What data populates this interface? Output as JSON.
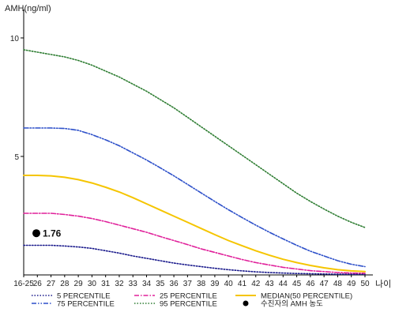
{
  "chart_data": {
    "type": "line",
    "ylabel": "AMH(ng/ml)",
    "xlabel": "나이",
    "ylim": [
      0,
      11
    ],
    "yticks": [
      "10",
      "5"
    ],
    "categories": [
      "16-25",
      "26",
      "27",
      "28",
      "29",
      "30",
      "31",
      "32",
      "33",
      "34",
      "35",
      "36",
      "37",
      "38",
      "39",
      "40",
      "41",
      "42",
      "43",
      "44",
      "45",
      "46",
      "47",
      "48",
      "49",
      "50"
    ],
    "series": [
      {
        "name": "5 PERCENTILE",
        "color": "#1a1a8c",
        "dash": "dotted",
        "values": [
          1.25,
          1.25,
          1.25,
          1.22,
          1.18,
          1.12,
          1.02,
          0.92,
          0.8,
          0.7,
          0.6,
          0.5,
          0.42,
          0.35,
          0.28,
          0.22,
          0.17,
          0.13,
          0.1,
          0.08,
          0.06,
          0.05,
          0.04,
          0.03,
          0.03,
          0.03
        ]
      },
      {
        "name": "25 PERCENTILE",
        "color": "#e0209a",
        "dash": "dashdot",
        "values": [
          2.6,
          2.6,
          2.6,
          2.55,
          2.48,
          2.38,
          2.25,
          2.1,
          1.95,
          1.8,
          1.62,
          1.45,
          1.28,
          1.1,
          0.95,
          0.8,
          0.65,
          0.52,
          0.42,
          0.32,
          0.25,
          0.18,
          0.14,
          0.1,
          0.08,
          0.07
        ]
      },
      {
        "name": "MEDIAN(50 PERCENTILE)",
        "color": "#f5c500",
        "dash": "solid",
        "values": [
          4.2,
          4.2,
          4.18,
          4.12,
          4.02,
          3.88,
          3.7,
          3.5,
          3.26,
          3.0,
          2.74,
          2.48,
          2.22,
          1.96,
          1.7,
          1.45,
          1.23,
          1.02,
          0.83,
          0.66,
          0.52,
          0.4,
          0.3,
          0.22,
          0.17,
          0.14
        ]
      },
      {
        "name": "75 PERCENTILE",
        "color": "#2c4fc9",
        "dash": "dashdotdot",
        "values": [
          6.2,
          6.2,
          6.2,
          6.18,
          6.1,
          5.92,
          5.7,
          5.45,
          5.15,
          4.85,
          4.52,
          4.18,
          3.82,
          3.46,
          3.1,
          2.75,
          2.42,
          2.1,
          1.8,
          1.52,
          1.25,
          1.0,
          0.8,
          0.6,
          0.45,
          0.35
        ]
      },
      {
        "name": "95 PERCENTILE",
        "color": "#2e7d32",
        "dash": "dotted",
        "values": [
          9.5,
          9.4,
          9.3,
          9.2,
          9.05,
          8.85,
          8.6,
          8.35,
          8.05,
          7.75,
          7.4,
          7.05,
          6.65,
          6.25,
          5.85,
          5.45,
          5.05,
          4.65,
          4.25,
          3.85,
          3.45,
          3.1,
          2.78,
          2.48,
          2.22,
          2.0
        ]
      }
    ],
    "legend_order": [
      "5 PERCENTILE",
      "25 PERCENTILE",
      "MEDIAN(50 PERCENTILE)",
      "75 PERCENTILE",
      "95 PERCENTILE",
      "수진자의 AMH 농도"
    ],
    "legend_position": "bottom",
    "highlight_point": {
      "name": "수진자의 AMH 농도",
      "x": "16-25",
      "y": 1.76,
      "label": "1.76",
      "color": "#000000"
    },
    "grid": false
  }
}
